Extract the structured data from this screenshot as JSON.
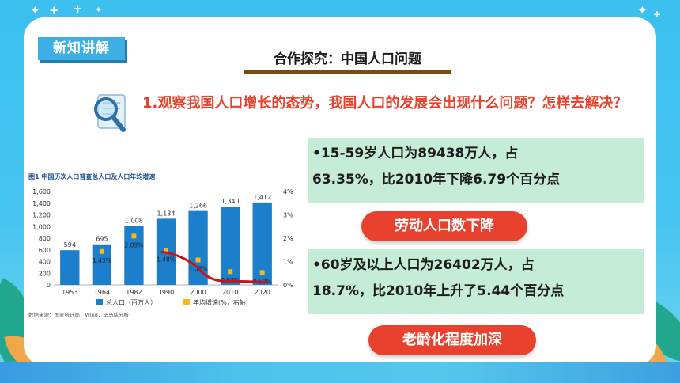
{
  "slide": {
    "section_tag": "新知讲解",
    "title": "合作探究：中国人口问题",
    "question": "1.观察我国人口增长的态势，我国人口的发展会出现什么问题？怎样去解决？",
    "fact1": {
      "line1": "•15-59岁人口为89438万人，占",
      "line2": "63.35%，比2010年下降6.79个百分点",
      "conclusion": "劳动人口数下降"
    },
    "fact2": {
      "line1": "•60岁及以上人口为26402万人，占",
      "line2": "18.7%，比2010年上升了5.44个百分点",
      "conclusion": "老龄化程度加深"
    }
  },
  "colors": {
    "background": "#3cc0f0",
    "accent_red": "#e8412d",
    "tag_blue": "#3eafe3",
    "fact_bg": "#c5ecd7",
    "bar_blue": "#1b7fcb",
    "marker_yellow": "#f6b81a",
    "trend_red": "#c4151c"
  },
  "icons": {
    "magnifier": "magnifier-icon",
    "sparkles": "sparkle-icon"
  },
  "chart_data": {
    "type": "bar",
    "title": "图1 中国历次人口普查总人口及人口年均增速",
    "categories": [
      "1953",
      "1964",
      "1982",
      "1990",
      "2000",
      "2010",
      "2020"
    ],
    "series": [
      {
        "name": "总人口（百万人）",
        "values": [
          594,
          695,
          1008,
          1134,
          1266,
          1340,
          1412
        ],
        "axis": "left"
      },
      {
        "name": "年均增速(%，右轴)",
        "values": [
          null,
          1.43,
          2.09,
          1.48,
          1.07,
          0.57,
          0.53
        ],
        "axis": "right"
      }
    ],
    "value_labels": [
      "594",
      "695",
      "1,008",
      "1,134",
      "1,266",
      "1,340",
      "1,412"
    ],
    "rate_labels": [
      "",
      "1.43%",
      "2.09%",
      "1.48%",
      "1.07%",
      "0.57%",
      "0.53%"
    ],
    "y_ticks": [
      "0",
      "200",
      "400",
      "600",
      "800",
      "1,000",
      "1,200",
      "1,400",
      "1,600"
    ],
    "y2_ticks": [
      "0%",
      "1%",
      "2%",
      "3%",
      "4%"
    ],
    "ylim": [
      0,
      1600
    ],
    "y2lim": [
      0,
      4
    ],
    "legend": [
      "总人口（百万人）",
      "年均增速(%，右轴)"
    ],
    "legend_position": "bottom",
    "source": "数据来源：国家统计局，Wind，毕马威分析",
    "grid": false,
    "trend_annotation": "hand-drawn red line from 1990 to 2020 along the growth-rate markers"
  }
}
